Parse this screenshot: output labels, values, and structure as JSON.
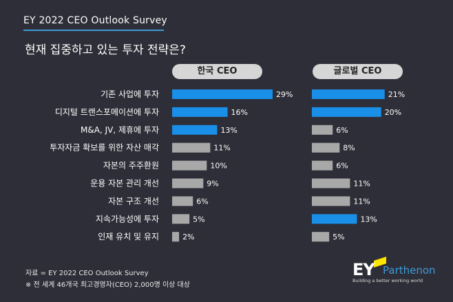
{
  "header": {
    "survey_title": "EY 2022 CEO Outlook Survey",
    "question": "현재 집중하고 있는 투자 전략은?"
  },
  "colors": {
    "highlight": "#1a8fe8",
    "normal": "#a8a8a8",
    "background": "#2e2e38",
    "accent": "#3d9bd9"
  },
  "chart_data": {
    "type": "bar",
    "orientation": "horizontal",
    "categories": [
      "기존 사업에 투자",
      "디지털 트랜스포메이션에 투자",
      "M&A, JV, 제휴에 투자",
      "투자자금 확보를 위한 자산 매각",
      "자본의 주주환원",
      "운용 자본 관리 개선",
      "자본 구조 개선",
      "지속가능성에 투자",
      "인재 유치 및 유지"
    ],
    "series": [
      {
        "name": "한국 CEO",
        "values": [
          29,
          16,
          13,
          11,
          10,
          9,
          6,
          5,
          2
        ],
        "highlighted": [
          true,
          true,
          true,
          false,
          false,
          false,
          false,
          false,
          false
        ]
      },
      {
        "name": "글로벌 CEO",
        "values": [
          21,
          20,
          6,
          8,
          6,
          11,
          11,
          13,
          5
        ],
        "highlighted": [
          true,
          true,
          false,
          false,
          false,
          false,
          false,
          true,
          false
        ]
      }
    ],
    "unit": "%"
  },
  "footer": {
    "source": "자료 = EY 2022 CEO Outlook Survey",
    "note": "※ 전 세계 46개국 최고경영자(CEO) 2,000명 이상 대상"
  },
  "logo": {
    "brand": "EY",
    "sub_brand": "Parthenon",
    "tagline": "Building a better working world"
  }
}
